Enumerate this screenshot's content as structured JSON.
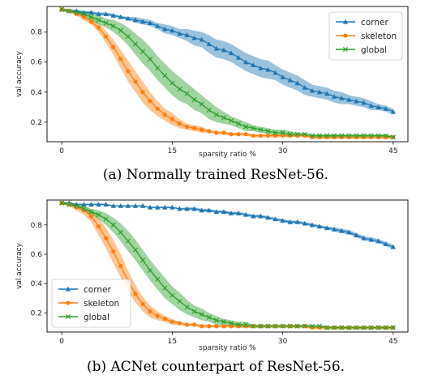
{
  "chart_data": [
    {
      "type": "line",
      "caption": "(a) Normally trained ResNet-56.",
      "xlabel": "sparsity ratio %",
      "ylabel": "val accuracy",
      "xlim": [
        -2,
        47
      ],
      "ylim": [
        0.07,
        0.97
      ],
      "xticks": [
        0,
        15,
        30,
        45
      ],
      "yticks": [
        0.2,
        0.4,
        0.6,
        0.8
      ],
      "legend_position": "top-right",
      "x": [
        0,
        1,
        2,
        3,
        4,
        5,
        6,
        7,
        8,
        9,
        10,
        11,
        12,
        13,
        14,
        15,
        16,
        17,
        18,
        19,
        20,
        21,
        22,
        23,
        24,
        25,
        26,
        27,
        28,
        29,
        30,
        31,
        32,
        33,
        34,
        35,
        36,
        37,
        38,
        39,
        40,
        41,
        42,
        43,
        44,
        45
      ],
      "series": [
        {
          "name": "corner",
          "color": "#1f77b4",
          "marker": "triangle",
          "values": [
            0.95,
            0.94,
            0.94,
            0.93,
            0.93,
            0.92,
            0.92,
            0.91,
            0.9,
            0.89,
            0.88,
            0.87,
            0.86,
            0.84,
            0.82,
            0.81,
            0.79,
            0.78,
            0.76,
            0.75,
            0.72,
            0.69,
            0.68,
            0.66,
            0.63,
            0.6,
            0.58,
            0.56,
            0.55,
            0.53,
            0.5,
            0.48,
            0.46,
            0.43,
            0.41,
            0.4,
            0.39,
            0.37,
            0.36,
            0.35,
            0.34,
            0.33,
            0.31,
            0.3,
            0.29,
            0.27
          ],
          "band": [
            0.01,
            0.01,
            0.01,
            0.01,
            0.01,
            0.01,
            0.01,
            0.01,
            0.01,
            0.01,
            0.02,
            0.02,
            0.02,
            0.02,
            0.03,
            0.03,
            0.03,
            0.04,
            0.05,
            0.05,
            0.06,
            0.06,
            0.06,
            0.06,
            0.06,
            0.06,
            0.06,
            0.06,
            0.06,
            0.05,
            0.05,
            0.05,
            0.05,
            0.05,
            0.04,
            0.04,
            0.04,
            0.04,
            0.04,
            0.03,
            0.03,
            0.03,
            0.03,
            0.02,
            0.02,
            0.02
          ]
        },
        {
          "name": "skeleton",
          "color": "#ff7f0e",
          "marker": "circle",
          "values": [
            0.95,
            0.94,
            0.92,
            0.9,
            0.87,
            0.83,
            0.77,
            0.7,
            0.62,
            0.54,
            0.47,
            0.4,
            0.34,
            0.29,
            0.25,
            0.22,
            0.19,
            0.17,
            0.16,
            0.15,
            0.14,
            0.13,
            0.13,
            0.12,
            0.12,
            0.12,
            0.11,
            0.11,
            0.11,
            0.11,
            0.11,
            0.11,
            0.11,
            0.11,
            0.1,
            0.1,
            0.1,
            0.1,
            0.1,
            0.1,
            0.1,
            0.1,
            0.1,
            0.1,
            0.1,
            0.1
          ],
          "band": [
            0.01,
            0.01,
            0.01,
            0.02,
            0.02,
            0.03,
            0.04,
            0.05,
            0.06,
            0.07,
            0.07,
            0.07,
            0.06,
            0.05,
            0.04,
            0.04,
            0.03,
            0.02,
            0.02,
            0.02,
            0.01,
            0.01,
            0.01,
            0.01,
            0.01,
            0.01,
            0.01,
            0.01,
            0.01,
            0.01,
            0.01,
            0.01,
            0.01,
            0.01,
            0.01,
            0.01,
            0.01,
            0.01,
            0.01,
            0.01,
            0.01,
            0.01,
            0.01,
            0.01,
            0.01,
            0.01
          ]
        },
        {
          "name": "global",
          "color": "#2ca02c",
          "marker": "x",
          "values": [
            0.95,
            0.94,
            0.93,
            0.92,
            0.9,
            0.88,
            0.86,
            0.84,
            0.81,
            0.77,
            0.72,
            0.67,
            0.62,
            0.56,
            0.51,
            0.46,
            0.42,
            0.39,
            0.35,
            0.32,
            0.28,
            0.25,
            0.23,
            0.21,
            0.19,
            0.17,
            0.16,
            0.15,
            0.14,
            0.13,
            0.13,
            0.12,
            0.12,
            0.12,
            0.11,
            0.11,
            0.11,
            0.11,
            0.11,
            0.11,
            0.11,
            0.11,
            0.11,
            0.11,
            0.11,
            0.1
          ],
          "band": [
            0.01,
            0.01,
            0.01,
            0.02,
            0.02,
            0.03,
            0.03,
            0.04,
            0.05,
            0.06,
            0.07,
            0.08,
            0.08,
            0.08,
            0.08,
            0.08,
            0.08,
            0.07,
            0.07,
            0.06,
            0.06,
            0.05,
            0.04,
            0.03,
            0.03,
            0.03,
            0.02,
            0.02,
            0.02,
            0.02,
            0.02,
            0.02,
            0.01,
            0.01,
            0.01,
            0.01,
            0.01,
            0.01,
            0.01,
            0.01,
            0.01,
            0.01,
            0.01,
            0.01,
            0.01,
            0.01
          ]
        }
      ]
    },
    {
      "type": "line",
      "caption": "(b) ACNet counterpart of ResNet-56.",
      "xlabel": "sparsity ratio %",
      "ylabel": "val accuracy",
      "xlim": [
        -2,
        47
      ],
      "ylim": [
        0.07,
        0.97
      ],
      "xticks": [
        0,
        15,
        30,
        45
      ],
      "yticks": [
        0.2,
        0.4,
        0.6,
        0.8
      ],
      "legend_position": "bottom-left",
      "x": [
        0,
        1,
        2,
        3,
        4,
        5,
        6,
        7,
        8,
        9,
        10,
        11,
        12,
        13,
        14,
        15,
        16,
        17,
        18,
        19,
        20,
        21,
        22,
        23,
        24,
        25,
        26,
        27,
        28,
        29,
        30,
        31,
        32,
        33,
        34,
        35,
        36,
        37,
        38,
        39,
        40,
        41,
        42,
        43,
        44,
        45
      ],
      "series": [
        {
          "name": "corner",
          "color": "#1f77b4",
          "marker": "triangle",
          "values": [
            0.95,
            0.95,
            0.94,
            0.94,
            0.94,
            0.94,
            0.94,
            0.93,
            0.93,
            0.93,
            0.93,
            0.93,
            0.92,
            0.92,
            0.92,
            0.92,
            0.91,
            0.91,
            0.91,
            0.9,
            0.9,
            0.89,
            0.89,
            0.88,
            0.88,
            0.87,
            0.86,
            0.86,
            0.85,
            0.84,
            0.83,
            0.82,
            0.82,
            0.81,
            0.8,
            0.79,
            0.78,
            0.77,
            0.76,
            0.75,
            0.73,
            0.71,
            0.7,
            0.69,
            0.67,
            0.65
          ],
          "band": [
            0.005,
            0.005,
            0.005,
            0.005,
            0.005,
            0.005,
            0.005,
            0.005,
            0.005,
            0.005,
            0.005,
            0.005,
            0.005,
            0.005,
            0.005,
            0.005,
            0.005,
            0.01,
            0.01,
            0.01,
            0.01,
            0.01,
            0.01,
            0.01,
            0.01,
            0.01,
            0.01,
            0.01,
            0.01,
            0.01,
            0.01,
            0.01,
            0.01,
            0.01,
            0.01,
            0.01,
            0.01,
            0.015,
            0.015,
            0.015,
            0.015,
            0.015,
            0.015,
            0.015,
            0.015,
            0.015
          ]
        },
        {
          "name": "skeleton",
          "color": "#ff7f0e",
          "marker": "circle",
          "values": [
            0.95,
            0.94,
            0.92,
            0.9,
            0.86,
            0.79,
            0.71,
            0.62,
            0.52,
            0.42,
            0.33,
            0.26,
            0.21,
            0.18,
            0.16,
            0.14,
            0.13,
            0.12,
            0.12,
            0.11,
            0.11,
            0.11,
            0.11,
            0.11,
            0.11,
            0.11,
            0.11,
            0.11,
            0.11,
            0.11,
            0.11,
            0.11,
            0.11,
            0.11,
            0.1,
            0.1,
            0.1,
            0.1,
            0.1,
            0.1,
            0.1,
            0.1,
            0.1,
            0.1,
            0.1,
            0.1
          ],
          "band": [
            0.01,
            0.01,
            0.02,
            0.03,
            0.04,
            0.06,
            0.07,
            0.08,
            0.08,
            0.07,
            0.06,
            0.05,
            0.04,
            0.03,
            0.02,
            0.02,
            0.01,
            0.01,
            0.01,
            0.01,
            0.01,
            0.01,
            0.01,
            0.01,
            0.01,
            0.01,
            0.01,
            0.01,
            0.01,
            0.01,
            0.01,
            0.01,
            0.01,
            0.01,
            0.01,
            0.01,
            0.01,
            0.01,
            0.01,
            0.01,
            0.01,
            0.01,
            0.01,
            0.01,
            0.01,
            0.01
          ]
        },
        {
          "name": "global",
          "color": "#2ca02c",
          "marker": "x",
          "values": [
            0.95,
            0.94,
            0.93,
            0.91,
            0.89,
            0.87,
            0.84,
            0.8,
            0.75,
            0.69,
            0.63,
            0.56,
            0.49,
            0.43,
            0.37,
            0.32,
            0.28,
            0.24,
            0.21,
            0.19,
            0.17,
            0.15,
            0.14,
            0.13,
            0.12,
            0.12,
            0.11,
            0.11,
            0.11,
            0.11,
            0.11,
            0.11,
            0.11,
            0.11,
            0.11,
            0.11,
            0.1,
            0.1,
            0.1,
            0.1,
            0.1,
            0.1,
            0.1,
            0.1,
            0.1,
            0.1
          ],
          "band": [
            0.01,
            0.01,
            0.01,
            0.02,
            0.02,
            0.03,
            0.04,
            0.05,
            0.06,
            0.07,
            0.07,
            0.07,
            0.07,
            0.07,
            0.07,
            0.06,
            0.06,
            0.05,
            0.04,
            0.04,
            0.03,
            0.03,
            0.02,
            0.02,
            0.02,
            0.02,
            0.01,
            0.01,
            0.01,
            0.01,
            0.01,
            0.01,
            0.01,
            0.01,
            0.01,
            0.01,
            0.01,
            0.01,
            0.01,
            0.01,
            0.01,
            0.01,
            0.01,
            0.01,
            0.01,
            0.01
          ]
        }
      ]
    }
  ]
}
